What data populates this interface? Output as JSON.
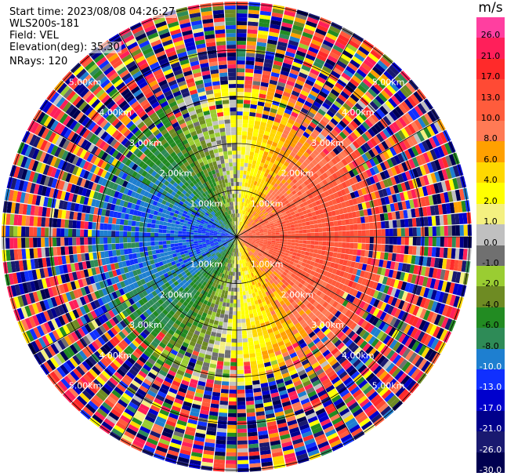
{
  "header": {
    "start_time": "Start time: 2023/08/08 04:26:27",
    "instrument": "WLS200s-181",
    "field": "Field: VEL",
    "elevation": "Elevation(deg): 35.30",
    "nrays": "NRays: 120"
  },
  "colorbar": {
    "unit": "m/s",
    "ticks": [
      "26.0",
      "21.0",
      "17.0",
      "13.0",
      "10.0",
      "8.0",
      "6.0",
      "4.0",
      "2.0",
      "1.0",
      "0.0",
      "-1.0",
      "-2.0",
      "-4.0",
      "-6.0",
      "-8.0",
      "-10.0",
      "-13.0",
      "-17.0",
      "-21.0",
      "-26.0",
      "-30.0"
    ],
    "colors": [
      "#ff3fa0",
      "#ff1f5a",
      "#ff2a2a",
      "#ff4a34",
      "#ff5c3c",
      "#ff7a55",
      "#ffa000",
      "#ffd800",
      "#ffff00",
      "#f4f080",
      "#c0c0c0",
      "#707070",
      "#9acd32",
      "#6e8b23",
      "#228b22",
      "#2e8b57",
      "#1e7fd0",
      "#1030ff",
      "#0000cd",
      "#00008b",
      "#191970",
      "#000050"
    ]
  },
  "range_labels": [
    "1.00km",
    "2.00km",
    "3.00km",
    "4.00km",
    "5.00km"
  ],
  "chart_data": {
    "type": "ppi",
    "field": "VEL",
    "units": "m/s",
    "nrays": 120,
    "ring_ranges_km": [
      1,
      2,
      3,
      4,
      5
    ],
    "vmin": -30,
    "vmax": 26
  }
}
